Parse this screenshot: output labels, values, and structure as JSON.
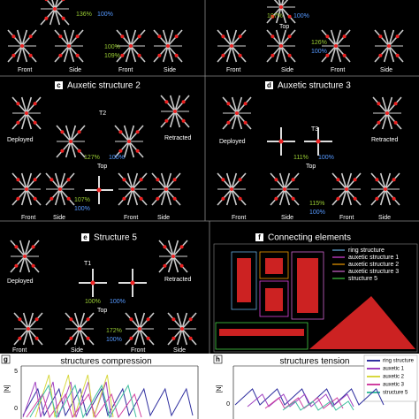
{
  "top": {
    "left": {
      "pct_a": "136%",
      "pct_b": "100%",
      "pct_c": "100%",
      "pct_d": "109%",
      "views": [
        "Front",
        "Side",
        "Front",
        "Side"
      ]
    },
    "right": {
      "pct_a": "107%",
      "pct_b": "100%",
      "top": "Top",
      "pct_c": "126%",
      "pct_d": "100%",
      "views": [
        "Front",
        "Side",
        "Front",
        "Side"
      ]
    }
  },
  "panels": [
    {
      "label": "c",
      "title": "Auxetic structure 2",
      "tool": "T2",
      "deployed": "Deployed",
      "retracted": "Retracted",
      "pct_a": "127%",
      "pct_b": "100%",
      "top": "Top",
      "pct_c": "107%",
      "pct_d": "100%",
      "views": [
        "Front",
        "Side",
        "Front",
        "Side"
      ]
    },
    {
      "label": "d",
      "title": "Auxetic structure 3",
      "tool": "T3",
      "deployed": "Deployed",
      "retracted": "Retracted",
      "pct_a": "111%",
      "pct_b": "100%",
      "top": "Top",
      "pct_c": "115%",
      "pct_d": "100%",
      "views": [
        "Front",
        "Side",
        "Front",
        "Side"
      ]
    },
    {
      "label": "e",
      "title": "Structure 5",
      "tool": "T1",
      "deployed": "Deployed",
      "retracted": "Retracted",
      "pct_a": "100%",
      "pct_b": "100%",
      "top": "Top",
      "pct_c": "172%",
      "pct_d": "100%",
      "views": [
        "Front",
        "Side",
        "Front",
        "Side"
      ]
    }
  ],
  "connecting": {
    "label": "f",
    "title": "Connecting elements",
    "legend": [
      "ring structure",
      "auxetic structure 1",
      "auxetic structure 2",
      "auxetic structure 3",
      "structure 5"
    ]
  },
  "compression": {
    "label": "g",
    "title": "structures compression",
    "y_unit": "[N]",
    "tick_low": "0",
    "tick_high": "5"
  },
  "tension": {
    "label": "h",
    "title": "structures tension",
    "y_unit": "[N]",
    "tick_low": "0",
    "legend": [
      "ring structure",
      "auxetic 1",
      "auxetic 2",
      "auxetic 3",
      "structure 5"
    ]
  }
}
